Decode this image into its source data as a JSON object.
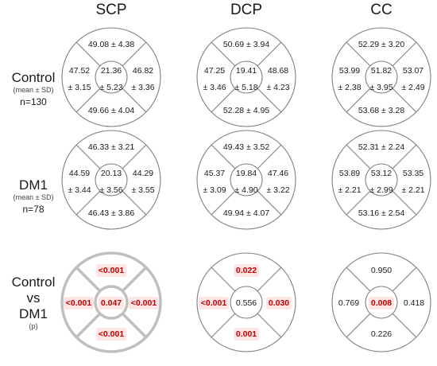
{
  "columns": [
    "SCP",
    "DCP",
    "CC"
  ],
  "rows": [
    {
      "title": "Control",
      "subtitle": "(mean ± SD)",
      "n": "n=130"
    },
    {
      "title": "DM1",
      "subtitle": "(mean ± SD)",
      "n": "n=78"
    },
    {
      "title_lines": [
        "Control",
        "vs",
        "DM1"
      ],
      "subtitle": "(p)"
    }
  ],
  "colors": {
    "ring": "#7f7f7f",
    "ring_sig": "#bfbfbf",
    "sig_text": "#c00000",
    "sig_fill": "#fbe5e5",
    "text": "#1a1a1a"
  },
  "grids": [
    [
      {
        "kind": "mean",
        "top": "49.08 ± 4.38",
        "left": [
          "47.52",
          "± 3.15"
        ],
        "center": [
          "21.36",
          "± 5.23"
        ],
        "right": [
          "46.82",
          "± 3.36"
        ],
        "bottom": "49.66 ± 4.04"
      },
      {
        "kind": "mean",
        "top": "50.69 ± 3.94",
        "left": [
          "47.25",
          "± 3.46"
        ],
        "center": [
          "19.41",
          "± 5.18"
        ],
        "right": [
          "48.68",
          "± 4.23"
        ],
        "bottom": "52.28 ± 4.95"
      },
      {
        "kind": "mean",
        "top": "52.29 ± 3.20",
        "left": [
          "53.99",
          "± 2.38"
        ],
        "center": [
          "51.82",
          "± 3.95"
        ],
        "right": [
          "53.07",
          "± 2.49"
        ],
        "bottom": "53.68 ± 3.28"
      }
    ],
    [
      {
        "kind": "mean",
        "top": "46.33 ± 3.21",
        "left": [
          "44.59",
          "± 3.44"
        ],
        "center": [
          "20.13",
          "± 3.56"
        ],
        "right": [
          "44.29",
          "± 3.55"
        ],
        "bottom": "46.43 ± 3.86"
      },
      {
        "kind": "mean",
        "top": "49.43 ± 3.52",
        "left": [
          "45.37",
          "± 3.09"
        ],
        "center": [
          "19.84",
          "± 4.90"
        ],
        "right": [
          "47.46",
          "± 3.22"
        ],
        "bottom": "49.94 ± 4.07"
      },
      {
        "kind": "mean",
        "top": "52.31 ± 2.24",
        "left": [
          "53.89",
          "± 2.21"
        ],
        "center": [
          "53.12",
          "± 2.99"
        ],
        "right": [
          "53.35",
          "± 2.21"
        ],
        "bottom": "53.16 ± 2.54"
      }
    ],
    [
      {
        "kind": "p",
        "thick": true,
        "top": {
          "v": "<0.001",
          "sig": true
        },
        "left": {
          "v": "<0.001",
          "sig": true
        },
        "center": {
          "v": "0.047",
          "sig": true
        },
        "right": {
          "v": "<0.001",
          "sig": true
        },
        "bottom": {
          "v": "<0.001",
          "sig": true
        }
      },
      {
        "kind": "p",
        "thick": false,
        "top": {
          "v": "0.022",
          "sig": true
        },
        "left": {
          "v": "<0.001",
          "sig": true
        },
        "center": {
          "v": "0.556",
          "sig": false
        },
        "right": {
          "v": "0.030",
          "sig": true
        },
        "bottom": {
          "v": "0.001",
          "sig": true
        }
      },
      {
        "kind": "p",
        "thick": false,
        "top": {
          "v": "0.950",
          "sig": false
        },
        "left": {
          "v": "0.769",
          "sig": false
        },
        "center": {
          "v": "0.008",
          "sig": true
        },
        "right": {
          "v": "0.418",
          "sig": false
        },
        "bottom": {
          "v": "0.226",
          "sig": false
        }
      }
    ]
  ]
}
